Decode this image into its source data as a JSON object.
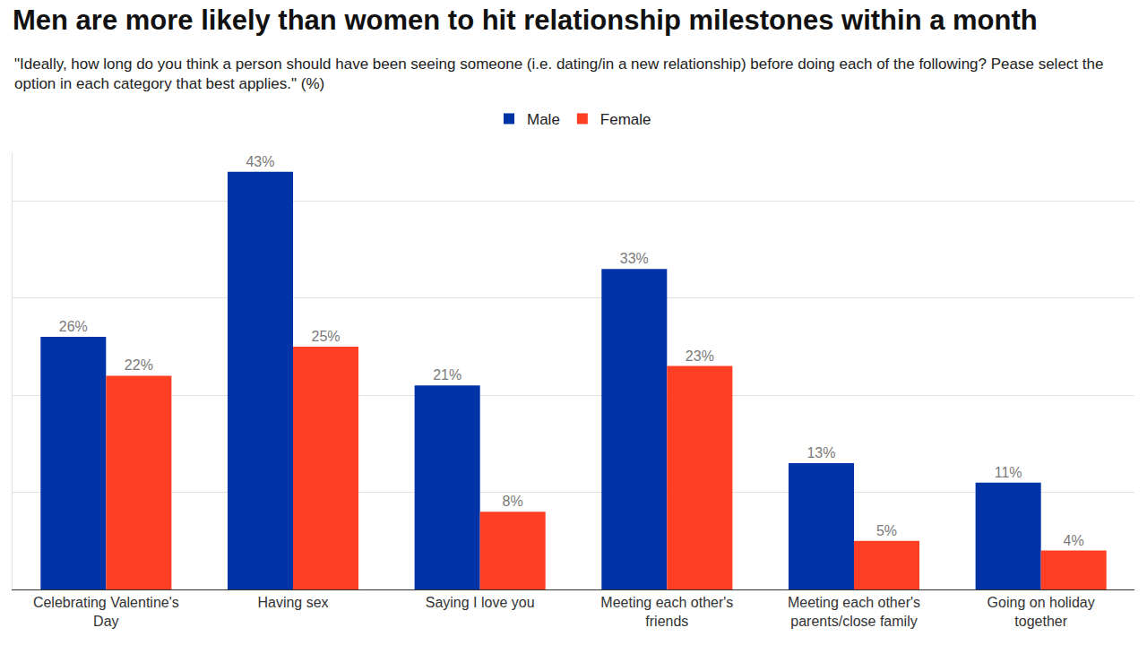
{
  "chart_data": {
    "type": "bar",
    "title": "Men are more likely than women to hit relationship milestones within a month",
    "subtitle": "\"Ideally, how long do you think a person should have been seeing someone (i.e. dating/in a new relationship) before doing each of the following? Pease select the option in each category that best applies.\" (%)",
    "categories": [
      "Celebrating Valentine's Day",
      "Having sex",
      "Saying I love you",
      "Meeting each other's friends",
      "Meeting each other's parents/close family",
      "Going on holiday together"
    ],
    "series": [
      {
        "name": "Male",
        "color": "#0034a6",
        "values": [
          26,
          43,
          21,
          33,
          13,
          11
        ],
        "value_labels": [
          "26%",
          "43%",
          "21%",
          "33%",
          "13%",
          "11%"
        ]
      },
      {
        "name": "Female",
        "color": "#ff3f24",
        "values": [
          22,
          25,
          8,
          23,
          5,
          4
        ],
        "value_labels": [
          "22%",
          "25%",
          "8%",
          "23%",
          "5%",
          "4%"
        ]
      }
    ],
    "ylim": [
      0,
      45
    ],
    "yticks": [
      0,
      10,
      20,
      30,
      40
    ],
    "grid": true,
    "legend": "top",
    "data_labels": true,
    "tick_labels": "x"
  }
}
